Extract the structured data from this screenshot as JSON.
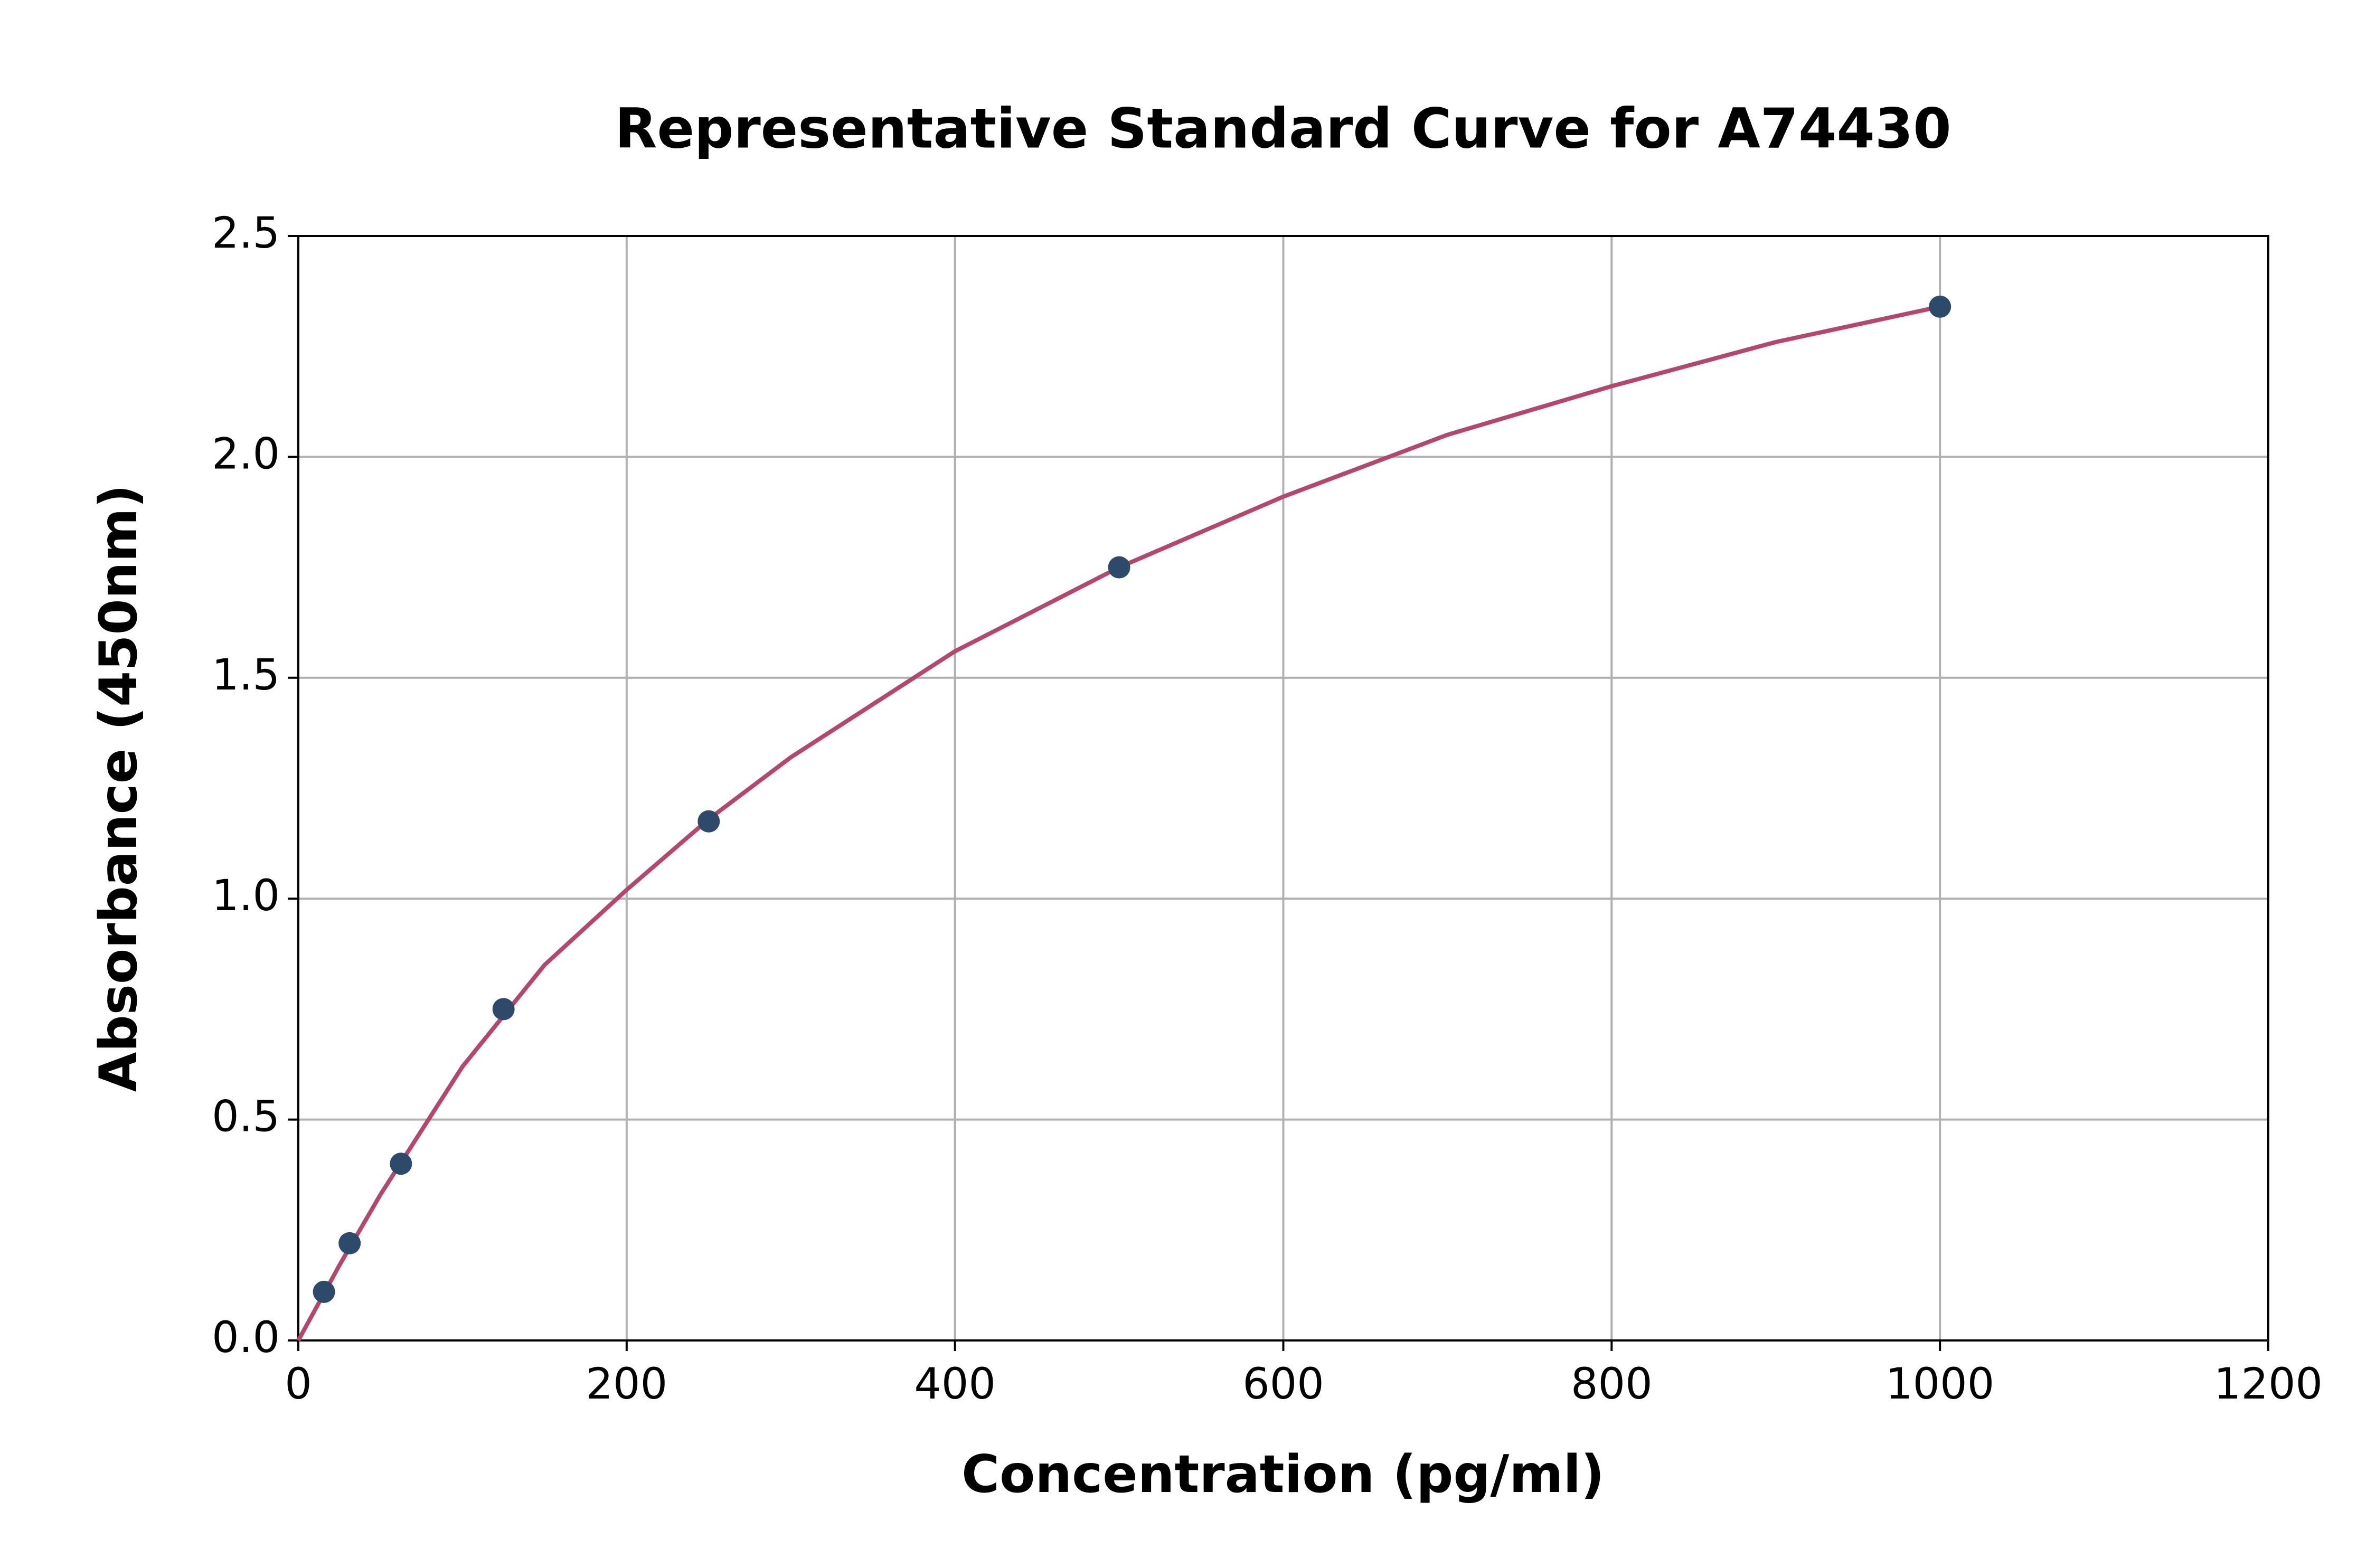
{
  "chart_data": {
    "type": "scatter",
    "title": "Representative Standard Curve for A74430",
    "x_label": "Concentration (pg/ml)",
    "y_label": "Absorbance (450nm)",
    "xlim": [
      0,
      1200
    ],
    "ylim": [
      0,
      2.5
    ],
    "xticks": [
      0,
      200,
      400,
      600,
      800,
      1000,
      1200
    ],
    "yticks": [
      {
        "value": 0,
        "label": "0.0"
      },
      {
        "value": 0.5,
        "label": "0.5"
      },
      {
        "value": 1,
        "label": "1.0"
      },
      {
        "value": 1.5,
        "label": "1.5"
      },
      {
        "value": 2,
        "label": "2.0"
      },
      {
        "value": 2.5,
        "label": "2.5"
      }
    ],
    "grid": true,
    "series": [
      {
        "type": "line",
        "color": "#b5476b",
        "x": [
          0,
          25,
          50,
          100,
          150,
          200,
          250,
          300,
          400,
          500,
          600,
          700,
          800,
          900,
          1000
        ],
        "values": [
          0,
          0.17,
          0.33,
          0.62,
          0.85,
          1.02,
          1.18,
          1.32,
          1.56,
          1.75,
          1.91,
          2.05,
          2.16,
          2.26,
          2.34
        ]
      },
      {
        "type": "scatter",
        "color": "#2e4a6b",
        "x": [
          15.625,
          31.25,
          62.5,
          125,
          250,
          500,
          1000
        ],
        "values": [
          0.11,
          0.22,
          0.4,
          0.75,
          1.175,
          1.75,
          2.34
        ]
      }
    ]
  }
}
